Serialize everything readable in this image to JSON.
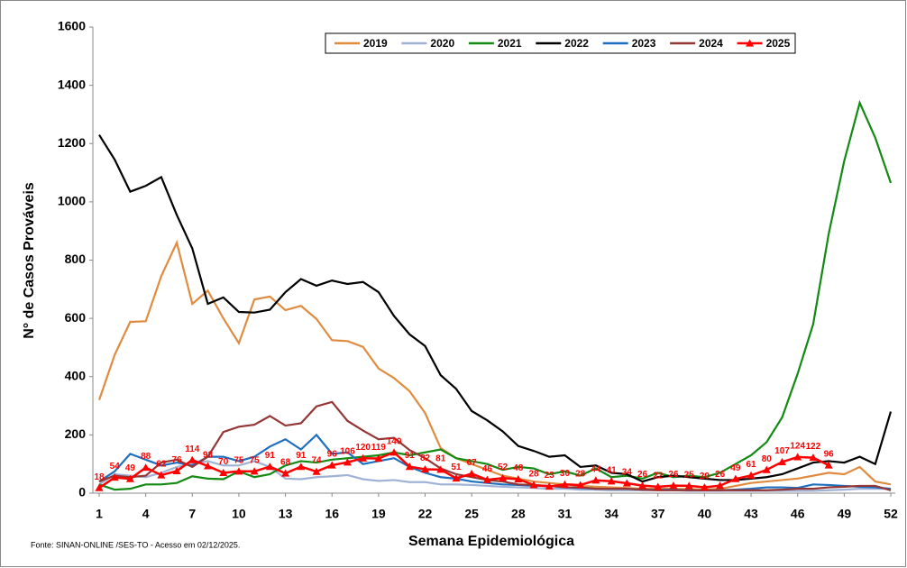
{
  "chart_data": {
    "type": "line",
    "x_label": "Semana Epidemiológica",
    "y_label": "N° de Casos Prováveis",
    "source": "Fonte: SINAN-ONLINE /SES-TO - Acesso em  02/12/2025.",
    "x": [
      1,
      2,
      3,
      4,
      5,
      6,
      7,
      8,
      9,
      10,
      11,
      12,
      13,
      14,
      15,
      16,
      17,
      18,
      19,
      20,
      21,
      22,
      23,
      24,
      25,
      26,
      27,
      28,
      29,
      30,
      31,
      32,
      33,
      34,
      35,
      36,
      37,
      38,
      39,
      40,
      41,
      42,
      43,
      44,
      45,
      46,
      47,
      48,
      49,
      50,
      51,
      52
    ],
    "xlim": [
      1,
      52
    ],
    "xticks": [
      1,
      4,
      7,
      10,
      13,
      16,
      19,
      22,
      25,
      28,
      31,
      34,
      37,
      40,
      43,
      46,
      49,
      52
    ],
    "ylim": [
      0,
      1600
    ],
    "yticks": [
      0,
      200,
      400,
      600,
      800,
      1000,
      1200,
      1400,
      1600
    ],
    "grid": false,
    "legend": "top-center",
    "series": [
      {
        "name": "2019",
        "color": "#e08b3f",
        "values": [
          320,
          475,
          588,
          590,
          745,
          860,
          650,
          695,
          600,
          515,
          665,
          675,
          628,
          643,
          598,
          525,
          522,
          502,
          428,
          395,
          350,
          275,
          155,
          120,
          100,
          80,
          60,
          50,
          40,
          35,
          30,
          25,
          22,
          20,
          18,
          15,
          15,
          15,
          14,
          12,
          15,
          25,
          35,
          40,
          45,
          50,
          60,
          70,
          65,
          90,
          40,
          30
        ]
      },
      {
        "name": "2020",
        "color": "#9fb2d6",
        "values": [
          30,
          65,
          60,
          55,
          70,
          90,
          100,
          110,
          95,
          95,
          110,
          90,
          50,
          48,
          55,
          58,
          62,
          48,
          42,
          45,
          38,
          38,
          30,
          30,
          28,
          25,
          22,
          20,
          18,
          15,
          15,
          12,
          12,
          10,
          10,
          10,
          10,
          10,
          8,
          8,
          8,
          8,
          8,
          8,
          8,
          8,
          8,
          10,
          12,
          15,
          15,
          15
        ]
      },
      {
        "name": "2021",
        "color": "#138a13",
        "values": [
          30,
          12,
          15,
          30,
          30,
          35,
          58,
          50,
          48,
          75,
          55,
          65,
          95,
          110,
          105,
          115,
          120,
          125,
          130,
          140,
          130,
          140,
          150,
          120,
          110,
          100,
          80,
          90,
          85,
          65,
          75,
          60,
          85,
          55,
          60,
          50,
          70,
          55,
          60,
          55,
          70,
          100,
          130,
          175,
          260,
          410,
          580,
          890,
          1140,
          1340,
          1220,
          1065
        ]
      },
      {
        "name": "2022",
        "color": "#000000",
        "values": [
          1230,
          1145,
          1035,
          1055,
          1085,
          955,
          840,
          650,
          672,
          622,
          620,
          630,
          690,
          735,
          712,
          730,
          718,
          725,
          690,
          608,
          545,
          505,
          405,
          358,
          282,
          250,
          212,
          162,
          145,
          125,
          130,
          90,
          95,
          70,
          65,
          40,
          55,
          60,
          55,
          50,
          45,
          45,
          50,
          55,
          65,
          85,
          105,
          110,
          105,
          125,
          100,
          280
        ]
      },
      {
        "name": "2023",
        "color": "#1f6fbf",
        "values": [
          40,
          75,
          135,
          115,
          95,
          105,
          95,
          125,
          125,
          110,
          125,
          160,
          185,
          150,
          200,
          135,
          140,
          100,
          110,
          120,
          90,
          70,
          55,
          50,
          40,
          35,
          30,
          28,
          25,
          25,
          20,
          18,
          15,
          15,
          15,
          12,
          12,
          12,
          10,
          10,
          10,
          12,
          15,
          20,
          20,
          18,
          30,
          28,
          25,
          22,
          20,
          15
        ]
      },
      {
        "name": "2024",
        "color": "#943634",
        "values": [
          40,
          60,
          55,
          60,
          105,
          115,
          90,
          125,
          210,
          228,
          235,
          265,
          232,
          240,
          298,
          313,
          248,
          215,
          185,
          190,
          148,
          120,
          85,
          65,
          55,
          45,
          40,
          30,
          28,
          25,
          20,
          20,
          15,
          15,
          15,
          12,
          10,
          10,
          10,
          10,
          10,
          10,
          10,
          10,
          12,
          15,
          15,
          20,
          22,
          25,
          25,
          10
        ]
      },
      {
        "name": "2025",
        "color": "#ff0000",
        "marker": "triangle",
        "data_labels": true,
        "values": [
          18,
          54,
          49,
          88,
          62,
          76,
          114,
          93,
          70,
          75,
          75,
          91,
          68,
          91,
          74,
          96,
          106,
          120,
          119,
          140,
          91,
          82,
          81,
          51,
          67,
          46,
          52,
          48,
          28,
          23,
          30,
          28,
          44,
          41,
          34,
          26,
          22,
          26,
          25,
          20,
          26,
          49,
          61,
          80,
          107,
          124,
          122,
          96,
          null,
          null,
          null,
          null
        ]
      }
    ]
  }
}
